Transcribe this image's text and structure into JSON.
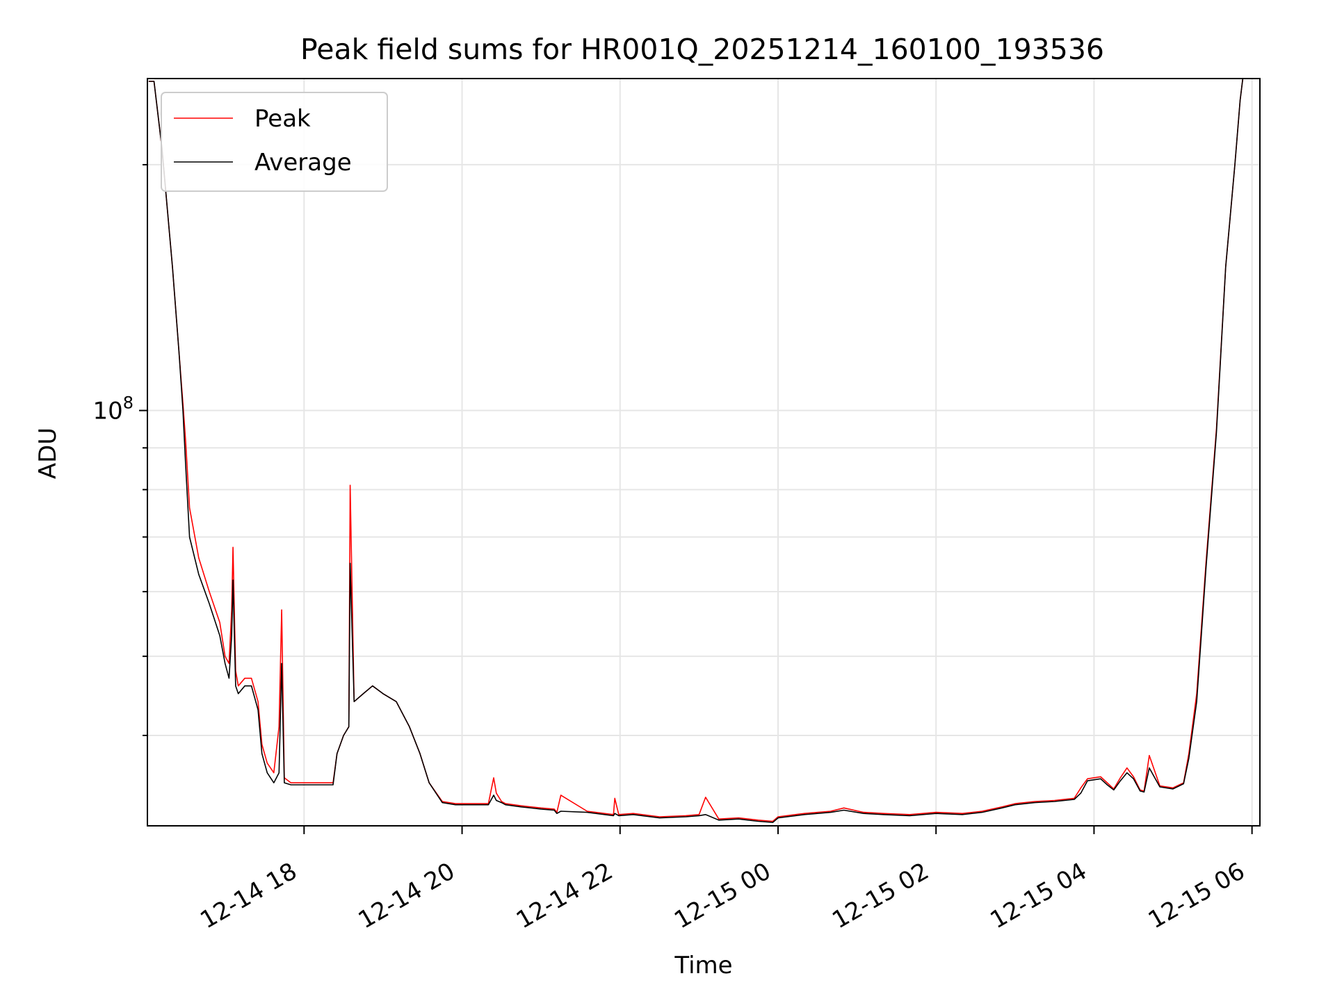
{
  "chart_data": {
    "type": "line",
    "title": "Peak field sums for HR001Q_20251214_160100_193536",
    "xlabel": "Time",
    "ylabel": "ADU",
    "y_scale": "log",
    "ylim": [
      31000000,
      255000000
    ],
    "xlim": [
      "2025-12-14 16:01",
      "2025-12-15 06:06"
    ],
    "x_ticks": [
      {
        "value": "2025-12-14 18:00",
        "label": "12-14 18"
      },
      {
        "value": "2025-12-14 20:00",
        "label": "12-14 20"
      },
      {
        "value": "2025-12-14 22:00",
        "label": "12-14 22"
      },
      {
        "value": "2025-12-15 00:00",
        "label": "12-15 00"
      },
      {
        "value": "2025-12-15 02:00",
        "label": "12-15 02"
      },
      {
        "value": "2025-12-15 04:00",
        "label": "12-15 04"
      },
      {
        "value": "2025-12-15 06:00",
        "label": "12-15 06"
      }
    ],
    "y_ticks_major": [
      {
        "value": 100000000,
        "label_base": "10",
        "label_exp": "8"
      }
    ],
    "y_ticks_minor": [
      40000000,
      50000000,
      60000000,
      70000000,
      80000000,
      90000000,
      200000000
    ],
    "grid": true,
    "legend": {
      "placement": "top-left"
    },
    "series": [
      {
        "name": "Peak",
        "color": "#ff0000",
        "x": [
          "2025-12-14 16:02",
          "2025-12-14 16:06",
          "2025-12-14 16:12",
          "2025-12-14 16:20",
          "2025-12-14 16:25",
          "2025-12-14 16:28",
          "2025-12-14 16:30",
          "2025-12-14 16:33",
          "2025-12-14 16:40",
          "2025-12-14 16:48",
          "2025-12-14 16:56",
          "2025-12-14 17:00",
          "2025-12-14 17:03",
          "2025-12-14 17:05",
          "2025-12-14 17:06",
          "2025-12-14 17:08",
          "2025-12-14 17:10",
          "2025-12-14 17:15",
          "2025-12-14 17:20",
          "2025-12-14 17:25",
          "2025-12-14 17:28",
          "2025-12-14 17:32",
          "2025-12-14 17:37",
          "2025-12-14 17:41",
          "2025-12-14 17:43",
          "2025-12-14 17:45",
          "2025-12-14 17:50",
          "2025-12-14 17:57",
          "2025-12-14 18:05",
          "2025-12-14 18:15",
          "2025-12-14 18:22",
          "2025-12-14 18:25",
          "2025-12-14 18:30",
          "2025-12-14 18:34",
          "2025-12-14 18:35",
          "2025-12-14 18:38",
          "2025-12-14 18:45",
          "2025-12-14 18:52",
          "2025-12-14 19:00",
          "2025-12-14 19:10",
          "2025-12-14 19:20",
          "2025-12-14 19:28",
          "2025-12-14 19:35",
          "2025-12-14 19:45",
          "2025-12-14 19:55",
          "2025-12-14 20:10",
          "2025-12-14 20:20",
          "2025-12-14 20:24",
          "2025-12-14 20:26",
          "2025-12-14 20:30",
          "2025-12-14 20:33",
          "2025-12-14 20:45",
          "2025-12-14 21:00",
          "2025-12-14 21:10",
          "2025-12-14 21:12",
          "2025-12-14 21:15",
          "2025-12-14 21:35",
          "2025-12-14 21:55",
          "2025-12-14 21:56",
          "2025-12-14 21:59",
          "2025-12-14 22:10",
          "2025-12-14 22:30",
          "2025-12-14 22:50",
          "2025-12-14 23:00",
          "2025-12-14 23:05",
          "2025-12-14 23:15",
          "2025-12-14 23:30",
          "2025-12-14 23:45",
          "2025-12-14 23:56",
          "2025-12-15 00:00",
          "2025-12-15 00:20",
          "2025-12-15 00:40",
          "2025-12-15 00:50",
          "2025-12-15 01:05",
          "2025-12-15 01:20",
          "2025-12-15 01:40",
          "2025-12-15 02:00",
          "2025-12-15 02:20",
          "2025-12-15 02:35",
          "2025-12-15 02:50",
          "2025-12-15 03:00",
          "2025-12-15 03:15",
          "2025-12-15 03:30",
          "2025-12-15 03:45",
          "2025-12-15 03:50",
          "2025-12-15 03:55",
          "2025-12-15 04:05",
          "2025-12-15 04:10",
          "2025-12-15 04:15",
          "2025-12-15 04:20",
          "2025-12-15 04:25",
          "2025-12-15 04:30",
          "2025-12-15 04:35",
          "2025-12-15 04:38",
          "2025-12-15 04:42",
          "2025-12-15 04:50",
          "2025-12-15 05:00",
          "2025-12-15 05:08",
          "2025-12-15 05:12",
          "2025-12-15 05:18",
          "2025-12-15 05:25",
          "2025-12-15 05:33",
          "2025-12-15 05:40",
          "2025-12-15 05:47",
          "2025-12-15 05:51",
          "2025-12-15 05:53"
        ],
        "values": [
          253000000,
          253000000,
          210000000,
          150000000,
          118000000,
          102000000,
          92000000,
          76000000,
          66000000,
          60000000,
          55000000,
          50000000,
          49000000,
          57000000,
          68000000,
          48000000,
          46000000,
          47000000,
          47000000,
          44000000,
          39000000,
          37000000,
          36000000,
          41000000,
          57000000,
          35500000,
          35000000,
          35000000,
          35000000,
          35000000,
          35000000,
          38000000,
          40000000,
          41000000,
          81000000,
          44000000,
          45000000,
          46000000,
          45000000,
          44000000,
          41000000,
          38000000,
          35000000,
          33200000,
          33000000,
          33000000,
          33000000,
          35500000,
          34000000,
          33200000,
          33000000,
          32800000,
          32600000,
          32500000,
          32200000,
          33800000,
          32300000,
          32000000,
          33500000,
          32000000,
          32100000,
          31800000,
          31900000,
          32000000,
          33600000,
          31600000,
          31700000,
          31500000,
          31400000,
          31800000,
          32100000,
          32300000,
          32600000,
          32200000,
          32100000,
          32000000,
          32200000,
          32100000,
          32300000,
          32700000,
          33000000,
          33200000,
          33300000,
          33500000,
          34500000,
          35400000,
          35600000,
          35000000,
          34400000,
          35500000,
          36500000,
          35600000,
          34300000,
          34200000,
          37800000,
          34700000,
          34500000,
          35000000,
          38000000,
          45000000,
          65000000,
          95000000,
          150000000,
          200000000,
          240000000,
          255000000
        ]
      },
      {
        "name": "Average",
        "color": "#000000",
        "x": [
          "2025-12-14 16:02",
          "2025-12-14 16:06",
          "2025-12-14 16:12",
          "2025-12-14 16:20",
          "2025-12-14 16:25",
          "2025-12-14 16:28",
          "2025-12-14 16:30",
          "2025-12-14 16:33",
          "2025-12-14 16:40",
          "2025-12-14 16:48",
          "2025-12-14 16:56",
          "2025-12-14 17:00",
          "2025-12-14 17:03",
          "2025-12-14 17:05",
          "2025-12-14 17:06",
          "2025-12-14 17:08",
          "2025-12-14 17:10",
          "2025-12-14 17:15",
          "2025-12-14 17:20",
          "2025-12-14 17:25",
          "2025-12-14 17:28",
          "2025-12-14 17:32",
          "2025-12-14 17:37",
          "2025-12-14 17:41",
          "2025-12-14 17:43",
          "2025-12-14 17:45",
          "2025-12-14 17:50",
          "2025-12-14 17:57",
          "2025-12-14 18:05",
          "2025-12-14 18:15",
          "2025-12-14 18:22",
          "2025-12-14 18:25",
          "2025-12-14 18:30",
          "2025-12-14 18:34",
          "2025-12-14 18:35",
          "2025-12-14 18:38",
          "2025-12-14 18:45",
          "2025-12-14 18:52",
          "2025-12-14 19:00",
          "2025-12-14 19:10",
          "2025-12-14 19:20",
          "2025-12-14 19:28",
          "2025-12-14 19:35",
          "2025-12-14 19:45",
          "2025-12-14 19:55",
          "2025-12-14 20:10",
          "2025-12-14 20:20",
          "2025-12-14 20:24",
          "2025-12-14 20:26",
          "2025-12-14 20:30",
          "2025-12-14 20:33",
          "2025-12-14 20:45",
          "2025-12-14 21:00",
          "2025-12-14 21:10",
          "2025-12-14 21:12",
          "2025-12-14 21:15",
          "2025-12-14 21:35",
          "2025-12-14 21:55",
          "2025-12-14 21:56",
          "2025-12-14 21:59",
          "2025-12-14 22:10",
          "2025-12-14 22:30",
          "2025-12-14 22:50",
          "2025-12-14 23:00",
          "2025-12-14 23:05",
          "2025-12-14 23:15",
          "2025-12-14 23:30",
          "2025-12-14 23:45",
          "2025-12-14 23:56",
          "2025-12-15 00:00",
          "2025-12-15 00:20",
          "2025-12-15 00:40",
          "2025-12-15 00:50",
          "2025-12-15 01:05",
          "2025-12-15 01:20",
          "2025-12-15 01:40",
          "2025-12-15 02:00",
          "2025-12-15 02:20",
          "2025-12-15 02:35",
          "2025-12-15 02:50",
          "2025-12-15 03:00",
          "2025-12-15 03:15",
          "2025-12-15 03:30",
          "2025-12-15 03:45",
          "2025-12-15 03:50",
          "2025-12-15 03:55",
          "2025-12-15 04:05",
          "2025-12-15 04:10",
          "2025-12-15 04:15",
          "2025-12-15 04:20",
          "2025-12-15 04:25",
          "2025-12-15 04:30",
          "2025-12-15 04:35",
          "2025-12-15 04:38",
          "2025-12-15 04:42",
          "2025-12-15 04:50",
          "2025-12-15 05:00",
          "2025-12-15 05:08",
          "2025-12-15 05:12",
          "2025-12-15 05:18",
          "2025-12-15 05:25",
          "2025-12-15 05:33",
          "2025-12-15 05:40",
          "2025-12-15 05:47",
          "2025-12-15 05:51",
          "2025-12-15 05:53"
        ],
        "values": [
          253000000,
          253000000,
          210000000,
          150000000,
          118000000,
          100000000,
          86000000,
          70000000,
          63000000,
          58000000,
          53000000,
          49000000,
          47000000,
          53000000,
          62000000,
          46000000,
          45000000,
          46000000,
          46000000,
          43000000,
          38000000,
          36000000,
          35000000,
          36000000,
          49000000,
          35000000,
          34800000,
          34800000,
          34800000,
          34800000,
          34800000,
          38000000,
          40000000,
          41000000,
          65000000,
          44000000,
          45000000,
          46000000,
          45000000,
          44000000,
          41000000,
          38000000,
          35000000,
          33100000,
          32900000,
          32900000,
          32900000,
          33800000,
          33300000,
          33100000,
          32900000,
          32700000,
          32500000,
          32400000,
          32100000,
          32300000,
          32200000,
          31900000,
          32100000,
          31900000,
          32000000,
          31700000,
          31800000,
          31900000,
          32000000,
          31500000,
          31600000,
          31400000,
          31300000,
          31700000,
          32000000,
          32200000,
          32400000,
          32100000,
          32000000,
          31900000,
          32100000,
          32000000,
          32200000,
          32600000,
          32900000,
          33100000,
          33200000,
          33400000,
          34000000,
          35200000,
          35400000,
          34800000,
          34300000,
          35200000,
          36000000,
          35400000,
          34200000,
          34100000,
          36500000,
          34600000,
          34400000,
          34900000,
          37500000,
          44000000,
          64000000,
          94000000,
          150000000,
          200000000,
          240000000,
          255000000
        ]
      }
    ]
  }
}
